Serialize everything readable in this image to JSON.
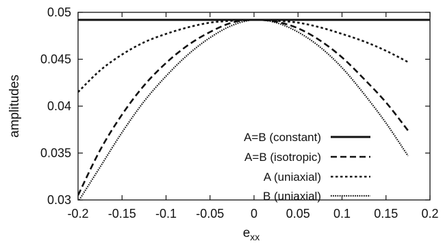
{
  "chart_data": {
    "type": "line",
    "title": "",
    "xlabel": "e",
    "xlabel_subscript": "xx",
    "ylabel": "amplitudes",
    "xlim": [
      -0.2,
      0.2
    ],
    "ylim": [
      0.03,
      0.05
    ],
    "xticks": [
      -0.2,
      -0.15,
      -0.1,
      -0.05,
      0,
      0.05,
      0.1,
      0.15,
      0.2
    ],
    "xtick_labels": [
      "-0.2",
      "-0.15",
      "-0.1",
      "-0.05",
      "0",
      "0.05",
      "0.1",
      "0.15",
      "0.2"
    ],
    "yticks": [
      0.03,
      0.035,
      0.04,
      0.045,
      0.05
    ],
    "ytick_labels": [
      "0.03",
      "0.035",
      "0.04",
      "0.045",
      "0.05"
    ],
    "grid": false,
    "legend_position": "inside-bottom-right",
    "series": [
      {
        "name": "A=B (constant)",
        "dash": "solid",
        "x": [
          -0.2,
          -0.15,
          -0.1,
          -0.05,
          0,
          0.05,
          0.1,
          0.15,
          0.175
        ],
        "y": [
          0.0492,
          0.0492,
          0.0492,
          0.0492,
          0.0492,
          0.0492,
          0.0492,
          0.0492,
          0.0492
        ]
      },
      {
        "name": "A=B (isotropic)",
        "dash": "dashed",
        "x": [
          -0.2,
          -0.175,
          -0.15,
          -0.125,
          -0.1,
          -0.075,
          -0.05,
          -0.025,
          0,
          0.025,
          0.05,
          0.075,
          0.1,
          0.125,
          0.15,
          0.175
        ],
        "y": [
          0.0305,
          0.0353,
          0.0391,
          0.0422,
          0.0446,
          0.0465,
          0.0479,
          0.0489,
          0.0492,
          0.049,
          0.0483,
          0.047,
          0.0452,
          0.0429,
          0.0404,
          0.0374
        ]
      },
      {
        "name": "A (uniaxial)",
        "dash": "dotted-coarse",
        "x": [
          -0.2,
          -0.175,
          -0.15,
          -0.125,
          -0.1,
          -0.075,
          -0.05,
          -0.025,
          0,
          0.025,
          0.05,
          0.075,
          0.1,
          0.125,
          0.15,
          0.175
        ],
        "y": [
          0.0415,
          0.0438,
          0.0455,
          0.0468,
          0.0477,
          0.0484,
          0.0489,
          0.0491,
          0.0492,
          0.0491,
          0.0489,
          0.0484,
          0.0477,
          0.0469,
          0.0459,
          0.0447
        ]
      },
      {
        "name": "B (uniaxial)",
        "dash": "dotted-fine",
        "x": [
          -0.2,
          -0.175,
          -0.15,
          -0.125,
          -0.1,
          -0.075,
          -0.05,
          -0.025,
          0,
          0.025,
          0.05,
          0.075,
          0.1,
          0.125,
          0.15,
          0.175
        ],
        "y": [
          0.0298,
          0.0335,
          0.0372,
          0.0405,
          0.0432,
          0.0455,
          0.0473,
          0.0486,
          0.0492,
          0.0489,
          0.0479,
          0.0463,
          0.0441,
          0.0413,
          0.0382,
          0.0347
        ]
      }
    ]
  }
}
